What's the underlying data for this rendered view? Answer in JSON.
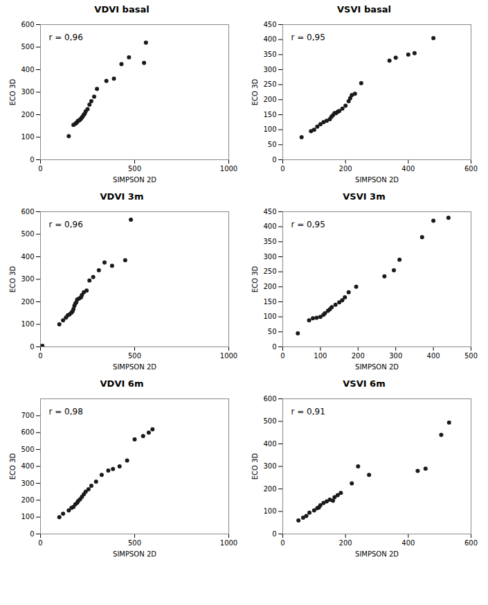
{
  "chart_data": [
    {
      "type": "scatter",
      "title": "VDVI basal",
      "xlabel": "SIMPSON 2D",
      "ylabel": "ECO 3D",
      "annotation": "r = 0,96",
      "color": "#1a1a1a",
      "xlim": [
        0,
        1000
      ],
      "ylim": [
        0,
        600
      ],
      "xticks": [
        0,
        500,
        1000
      ],
      "yticks": [
        0,
        100,
        200,
        300,
        400,
        500,
        600
      ],
      "x": [
        150,
        175,
        185,
        190,
        195,
        200,
        205,
        210,
        215,
        220,
        225,
        230,
        235,
        240,
        250,
        260,
        270,
        285,
        300,
        350,
        390,
        430,
        470,
        550,
        560
      ],
      "values": [
        105,
        155,
        160,
        163,
        168,
        173,
        175,
        178,
        182,
        188,
        193,
        200,
        205,
        215,
        225,
        245,
        260,
        280,
        315,
        350,
        360,
        425,
        455,
        430,
        520
      ]
    },
    {
      "type": "scatter",
      "title": "VSVI basal",
      "xlabel": "SIMPSON 2D",
      "ylabel": "ECO 3D",
      "annotation": "r = 0,95",
      "color": "#1a1a1a",
      "xlim": [
        0,
        600
      ],
      "ylim": [
        0,
        450
      ],
      "xticks": [
        0,
        200,
        400,
        600
      ],
      "yticks": [
        0,
        50,
        100,
        150,
        200,
        250,
        300,
        350,
        400,
        450
      ],
      "x": [
        60,
        90,
        100,
        110,
        120,
        130,
        140,
        150,
        155,
        160,
        165,
        170,
        175,
        180,
        190,
        200,
        210,
        215,
        220,
        230,
        250,
        340,
        360,
        400,
        420,
        480
      ],
      "values": [
        75,
        95,
        100,
        110,
        118,
        125,
        130,
        135,
        143,
        148,
        155,
        155,
        160,
        162,
        170,
        180,
        195,
        205,
        215,
        220,
        255,
        330,
        340,
        350,
        355,
        405
      ]
    },
    {
      "type": "scatter",
      "title": "VDVI 3m",
      "xlabel": "SIMPSON 2D",
      "ylabel": "ECO 3D",
      "annotation": "r = 0,96",
      "color": "#1a1a1a",
      "xlim": [
        0,
        1000
      ],
      "ylim": [
        0,
        600
      ],
      "xticks": [
        0,
        500,
        1000
      ],
      "yticks": [
        0,
        100,
        200,
        300,
        400,
        500,
        600
      ],
      "x": [
        10,
        100,
        120,
        135,
        145,
        155,
        165,
        170,
        175,
        180,
        185,
        190,
        195,
        205,
        215,
        220,
        230,
        245,
        260,
        280,
        310,
        340,
        380,
        450,
        480
      ],
      "values": [
        5,
        100,
        118,
        130,
        140,
        145,
        152,
        158,
        168,
        182,
        192,
        198,
        210,
        215,
        220,
        230,
        242,
        250,
        295,
        310,
        340,
        375,
        360,
        385,
        565
      ]
    },
    {
      "type": "scatter",
      "title": "VSVI 3m",
      "xlabel": "SIMPSON 2D",
      "ylabel": "ECO 3D",
      "annotation": "r = 0,95",
      "color": "#1a1a1a",
      "xlim": [
        0,
        500
      ],
      "ylim": [
        0,
        450
      ],
      "xticks": [
        0,
        100,
        200,
        300,
        400,
        500
      ],
      "yticks": [
        0,
        50,
        100,
        150,
        200,
        250,
        300,
        350,
        400,
        450
      ],
      "x": [
        40,
        70,
        80,
        90,
        100,
        108,
        112,
        120,
        125,
        130,
        140,
        150,
        158,
        165,
        175,
        195,
        270,
        295,
        310,
        370,
        400,
        440
      ],
      "values": [
        45,
        88,
        95,
        97,
        100,
        107,
        112,
        120,
        125,
        132,
        140,
        148,
        155,
        165,
        182,
        200,
        235,
        255,
        290,
        365,
        420,
        430
      ]
    },
    {
      "type": "scatter",
      "title": "VDVI 6m",
      "xlabel": "SIMPSON 2D",
      "ylabel": "ECO 3D",
      "annotation": "r = 0,98",
      "color": "#1a1a1a",
      "xlim": [
        0,
        1000
      ],
      "ylim": [
        0,
        800
      ],
      "xticks": [
        0,
        500,
        1000
      ],
      "yticks": [
        0,
        100,
        200,
        300,
        400,
        500,
        600,
        700
      ],
      "x": [
        100,
        120,
        150,
        165,
        175,
        185,
        195,
        200,
        210,
        220,
        230,
        240,
        255,
        270,
        295,
        325,
        360,
        385,
        420,
        460,
        500,
        545,
        575,
        595
      ],
      "values": [
        100,
        120,
        140,
        155,
        160,
        175,
        185,
        195,
        205,
        220,
        235,
        250,
        265,
        285,
        310,
        350,
        375,
        385,
        400,
        435,
        560,
        580,
        600,
        620
      ]
    },
    {
      "type": "scatter",
      "title": "VSVI 6m",
      "xlabel": "SIMPSON 2D",
      "ylabel": "ECO 3D",
      "annotation": "r = 0,91",
      "color": "#1a1a1a",
      "xlim": [
        0,
        600
      ],
      "ylim": [
        0,
        600
      ],
      "xticks": [
        0,
        200,
        400,
        600
      ],
      "yticks": [
        0,
        100,
        200,
        300,
        400,
        500,
        600
      ],
      "x": [
        50,
        65,
        75,
        85,
        100,
        110,
        115,
        120,
        130,
        140,
        150,
        160,
        165,
        175,
        185,
        220,
        240,
        275,
        430,
        455,
        505,
        530
      ],
      "values": [
        60,
        72,
        80,
        95,
        105,
        115,
        118,
        128,
        138,
        145,
        152,
        148,
        163,
        172,
        182,
        225,
        300,
        262,
        280,
        290,
        440,
        495
      ]
    }
  ]
}
